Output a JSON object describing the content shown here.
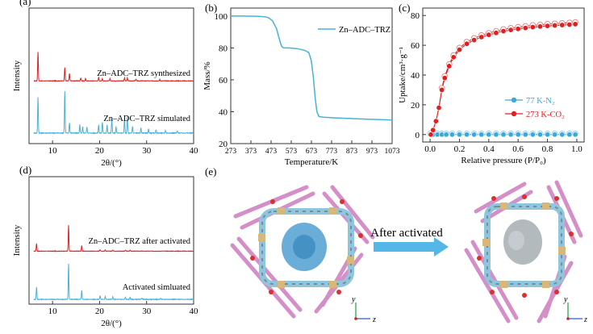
{
  "chart_data": [
    {
      "panel": "(a)",
      "type": "line",
      "xlabel": "2θ/(°)",
      "ylabel": "Intensity",
      "xlim": [
        5,
        40
      ],
      "xticks": [
        10,
        20,
        30,
        40
      ],
      "series": [
        {
          "name": "Zn–ADC–TRZ synthesized",
          "color": "#e02020",
          "peaks": [
            [
              6.9,
              1.0
            ],
            [
              12.6,
              0.45
            ],
            [
              13.6,
              0.25
            ],
            [
              16.0,
              0.1
            ],
            [
              17.0,
              0.08
            ],
            [
              19.8,
              0.12
            ],
            [
              20.6,
              0.08
            ],
            [
              22.2,
              0.08
            ],
            [
              25.3,
              0.1
            ],
            [
              25.9,
              0.1
            ],
            [
              27.7,
              0.06
            ],
            [
              32.8,
              0.05
            ]
          ]
        },
        {
          "name": "Zn–ADC–TRZ simulated",
          "color": "#49b1d8",
          "peaks": [
            [
              6.9,
              0.85
            ],
            [
              12.6,
              1.0
            ],
            [
              13.6,
              0.25
            ],
            [
              15.8,
              0.2
            ],
            [
              16.4,
              0.15
            ],
            [
              17.3,
              0.15
            ],
            [
              19.8,
              0.2
            ],
            [
              20.6,
              0.25
            ],
            [
              21.6,
              0.2
            ],
            [
              22.6,
              0.35
            ],
            [
              23.5,
              0.15
            ],
            [
              25.3,
              0.35
            ],
            [
              25.9,
              0.4
            ],
            [
              27.0,
              0.15
            ],
            [
              28.8,
              0.12
            ],
            [
              30.4,
              0.1
            ],
            [
              32.0,
              0.08
            ],
            [
              34.0,
              0.06
            ],
            [
              36.5,
              0.05
            ]
          ]
        }
      ]
    },
    {
      "panel": "(b)",
      "type": "line",
      "xlabel": "Temperature/K",
      "ylabel": "Mass/%",
      "xlim": [
        273,
        1073
      ],
      "ylim": [
        20,
        105
      ],
      "xticks": [
        273,
        373,
        473,
        573,
        673,
        773,
        873,
        973,
        1073
      ],
      "yticks": [
        20,
        40,
        60,
        80,
        100
      ],
      "legend": "Zn–ADC–TRZ",
      "series": [
        {
          "name": "Zn–ADC–TRZ",
          "color": "#49b1d8",
          "x": [
            273,
            330,
            400,
            440,
            460,
            480,
            500,
            515,
            525,
            535,
            560,
            600,
            640,
            660,
            672,
            682,
            692,
            700,
            710,
            730,
            780,
            850,
            950,
            1073
          ],
          "y": [
            100,
            100,
            99.9,
            99.6,
            99,
            97,
            92,
            85,
            81,
            80,
            80,
            79.6,
            78.5,
            77,
            72,
            62,
            48,
            40,
            37,
            36.6,
            36.2,
            35.8,
            35.3,
            34.8
          ]
        }
      ]
    },
    {
      "panel": "(c)",
      "type": "scatter",
      "xlabel": "Relative pressure (P/P₀)",
      "ylabel": "Uptake/cm³·g⁻¹",
      "xlim": [
        -0.05,
        1.05
      ],
      "ylim": [
        -5,
        85
      ],
      "xticks": [
        0.0,
        0.2,
        0.4,
        0.6,
        0.8,
        1.0
      ],
      "yticks": [
        0,
        20,
        40,
        60,
        80
      ],
      "series": [
        {
          "name": "77 K-N₂",
          "color": "#3fa7d8",
          "x": [
            0.0,
            0.02,
            0.05,
            0.08,
            0.11,
            0.15,
            0.2,
            0.25,
            0.3,
            0.35,
            0.4,
            0.45,
            0.5,
            0.55,
            0.6,
            0.65,
            0.7,
            0.75,
            0.8,
            0.85,
            0.9,
            0.95,
            0.99
          ],
          "y": [
            0,
            0,
            0,
            0,
            0,
            0,
            0,
            0,
            0,
            0,
            0,
            0,
            0,
            0,
            0,
            0,
            0,
            0,
            0,
            0,
            0,
            0,
            0
          ]
        },
        {
          "name": "273 K-CO₂",
          "color": "#e02020",
          "x": [
            0.005,
            0.02,
            0.04,
            0.06,
            0.08,
            0.1,
            0.13,
            0.16,
            0.2,
            0.25,
            0.3,
            0.35,
            0.4,
            0.45,
            0.5,
            0.55,
            0.6,
            0.65,
            0.7,
            0.75,
            0.8,
            0.85,
            0.9,
            0.95,
            0.99
          ],
          "y": [
            0,
            3,
            9,
            18,
            30,
            38,
            46,
            52,
            57,
            61,
            63.5,
            65.5,
            67,
            68.3,
            69.5,
            70.3,
            71,
            71.6,
            72.2,
            72.6,
            73,
            73.3,
            73.6,
            73.9,
            74.2
          ]
        }
      ]
    },
    {
      "panel": "(d)",
      "type": "line",
      "xlabel": "2θ/(°)",
      "ylabel": "Intensity",
      "xlim": [
        5,
        40
      ],
      "xticks": [
        10,
        20,
        30,
        40
      ],
      "series": [
        {
          "name": "Zn–ADC–TRZ after activated",
          "color": "#e02020",
          "peaks": [
            [
              6.6,
              0.3
            ],
            [
              13.4,
              1.0
            ],
            [
              16.2,
              0.22
            ],
            [
              20.1,
              0.06
            ],
            [
              21.2,
              0.05
            ],
            [
              22.8,
              0.05
            ],
            [
              25.5,
              0.04
            ],
            [
              26.5,
              0.04
            ]
          ]
        },
        {
          "name": "Activated simluated",
          "color": "#49b1d8",
          "peaks": [
            [
              6.6,
              0.35
            ],
            [
              13.4,
              1.0
            ],
            [
              16.2,
              0.25
            ],
            [
              20.1,
              0.1
            ],
            [
              21.2,
              0.08
            ],
            [
              22.8,
              0.07
            ],
            [
              25.5,
              0.06
            ],
            [
              26.5,
              0.06
            ],
            [
              29.0,
              0.04
            ],
            [
              33.0,
              0.03
            ]
          ]
        }
      ]
    }
  ],
  "labels": {
    "panel_e": "(e)",
    "arrow_text": "After activated",
    "axis_y": "y",
    "axis_z": "z"
  },
  "colors": {
    "red": "#e02020",
    "blue": "#49b1d8",
    "frame_pink": "#d48fc8",
    "frame_cyan": "#8ec6df",
    "pore_blue": "#4f9fd1",
    "pore_gray": "#9aa3a8",
    "metal_tan": "#d8b87a"
  }
}
